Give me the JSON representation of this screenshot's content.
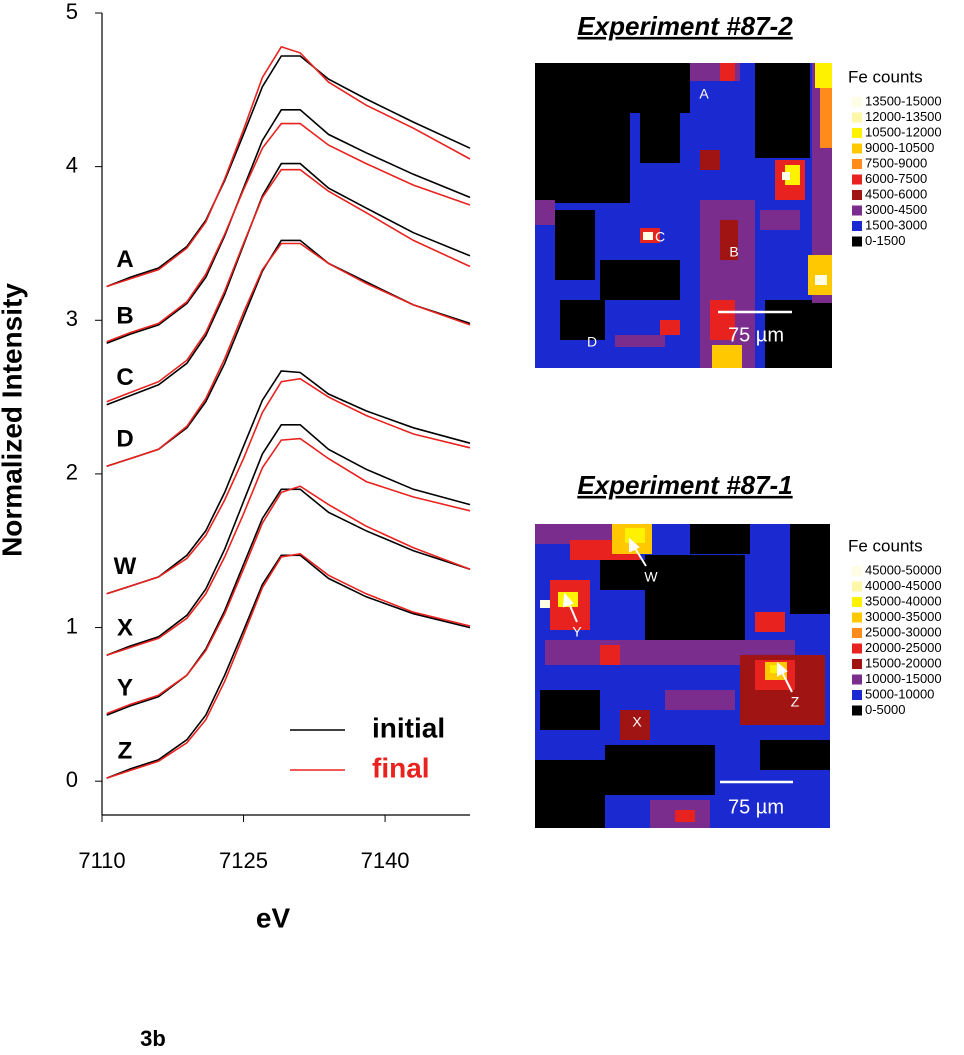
{
  "chart_data": {
    "type": "line",
    "ylabel": "Normalized Intensity",
    "xlabel": "eV",
    "panel_label": "3b",
    "xlim": [
      7110,
      7149
    ],
    "ylim": [
      -0.22,
      5
    ],
    "xticks": [
      7110,
      7125,
      7140
    ],
    "yticks": [
      0,
      1,
      2,
      3,
      4,
      5
    ],
    "x": [
      7110.5,
      7113,
      7116,
      7119,
      7121,
      7123,
      7125,
      7127,
      7129,
      7131,
      7134,
      7138,
      7143,
      7149
    ],
    "legend": [
      {
        "name": "initial",
        "color": "#000000"
      },
      {
        "name": "final",
        "color": "#e8231f"
      }
    ],
    "samples": [
      {
        "label": "A",
        "initial": [
          3.22,
          3.28,
          3.34,
          3.48,
          3.65,
          3.91,
          4.21,
          4.52,
          4.72,
          4.72,
          4.57,
          4.44,
          4.29,
          4.12
        ],
        "final": [
          3.22,
          3.27,
          3.33,
          3.47,
          3.64,
          3.92,
          4.24,
          4.58,
          4.78,
          4.74,
          4.55,
          4.4,
          4.25,
          4.05
        ]
      },
      {
        "label": "B",
        "initial": [
          2.85,
          2.91,
          2.97,
          3.11,
          3.28,
          3.55,
          3.86,
          4.17,
          4.37,
          4.37,
          4.21,
          4.09,
          3.95,
          3.8
        ],
        "final": [
          2.86,
          2.92,
          2.98,
          3.12,
          3.3,
          3.56,
          3.85,
          4.12,
          4.28,
          4.28,
          4.14,
          4.02,
          3.88,
          3.75
        ]
      },
      {
        "label": "C",
        "initial": [
          2.45,
          2.51,
          2.58,
          2.72,
          2.9,
          3.17,
          3.49,
          3.81,
          4.02,
          4.02,
          3.86,
          3.73,
          3.57,
          3.42
        ],
        "final": [
          2.47,
          2.53,
          2.6,
          2.74,
          2.92,
          3.19,
          3.5,
          3.8,
          3.98,
          3.98,
          3.84,
          3.7,
          3.52,
          3.35
        ]
      },
      {
        "label": "D",
        "initial": [
          2.05,
          2.1,
          2.16,
          2.3,
          2.47,
          2.72,
          3.02,
          3.32,
          3.52,
          3.52,
          3.37,
          3.25,
          3.1,
          2.98
        ],
        "final": [
          2.05,
          2.1,
          2.16,
          2.31,
          2.49,
          2.75,
          3.05,
          3.33,
          3.5,
          3.5,
          3.37,
          3.24,
          3.1,
          2.97
        ]
      },
      {
        "label": "W",
        "initial": [
          1.22,
          1.27,
          1.33,
          1.47,
          1.63,
          1.88,
          2.18,
          2.48,
          2.67,
          2.66,
          2.52,
          2.41,
          2.3,
          2.2
        ],
        "final": [
          1.22,
          1.27,
          1.33,
          1.45,
          1.6,
          1.83,
          2.1,
          2.4,
          2.6,
          2.62,
          2.5,
          2.38,
          2.26,
          2.17
        ]
      },
      {
        "label": "X",
        "initial": [
          0.82,
          0.88,
          0.94,
          1.08,
          1.25,
          1.51,
          1.82,
          2.13,
          2.32,
          2.32,
          2.16,
          2.03,
          1.9,
          1.8
        ],
        "final": [
          0.82,
          0.87,
          0.93,
          1.06,
          1.22,
          1.46,
          1.74,
          2.04,
          2.22,
          2.23,
          2.1,
          1.95,
          1.85,
          1.76
        ]
      },
      {
        "label": "Y",
        "initial": [
          0.43,
          0.49,
          0.55,
          0.69,
          0.86,
          1.11,
          1.41,
          1.71,
          1.9,
          1.9,
          1.75,
          1.63,
          1.5,
          1.38
        ],
        "final": [
          0.44,
          0.5,
          0.56,
          0.69,
          0.85,
          1.09,
          1.38,
          1.68,
          1.88,
          1.92,
          1.8,
          1.66,
          1.52,
          1.38
        ]
      },
      {
        "label": "Z",
        "initial": [
          0.02,
          0.08,
          0.14,
          0.27,
          0.43,
          0.69,
          0.98,
          1.28,
          1.47,
          1.47,
          1.32,
          1.2,
          1.09,
          1.0
        ],
        "final": [
          0.02,
          0.07,
          0.13,
          0.25,
          0.4,
          0.65,
          0.95,
          1.26,
          1.46,
          1.48,
          1.34,
          1.22,
          1.1,
          1.01
        ]
      }
    ]
  },
  "maps": [
    {
      "title": "Experiment #87-2",
      "legend_title": "Fe counts",
      "bins": [
        {
          "label": "13500-15000",
          "color": "#fffde6"
        },
        {
          "label": "12000-13500",
          "color": "#fff7a8"
        },
        {
          "label": "10500-12000",
          "color": "#fff200"
        },
        {
          "label": "9000-10500",
          "color": "#ffc800"
        },
        {
          "label": "7500-9000",
          "color": "#ff8c1a"
        },
        {
          "label": "6000-7500",
          "color": "#e8231f"
        },
        {
          "label": "4500-6000",
          "color": "#a01414"
        },
        {
          "label": "3000-4500",
          "color": "#7b2d8e"
        },
        {
          "label": "1500-3000",
          "color": "#1a2ad0"
        },
        {
          "label": "0-1500",
          "color": "#000000"
        }
      ],
      "points": [
        "A",
        "B",
        "C",
        "D"
      ],
      "scale_bar": "75 µm"
    },
    {
      "title": "Experiment #87-1",
      "legend_title": "Fe counts",
      "bins": [
        {
          "label": "45000-50000",
          "color": "#fffde6"
        },
        {
          "label": "40000-45000",
          "color": "#fff7a8"
        },
        {
          "label": "35000-40000",
          "color": "#fff200"
        },
        {
          "label": "30000-35000",
          "color": "#ffc800"
        },
        {
          "label": "25000-30000",
          "color": "#ff8c1a"
        },
        {
          "label": "20000-25000",
          "color": "#e8231f"
        },
        {
          "label": "15000-20000",
          "color": "#a01414"
        },
        {
          "label": "10000-15000",
          "color": "#7b2d8e"
        },
        {
          "label": "5000-10000",
          "color": "#1a2ad0"
        },
        {
          "label": "0-5000",
          "color": "#000000"
        }
      ],
      "points": [
        "W",
        "X",
        "Y",
        "Z"
      ],
      "scale_bar": "75 µm"
    }
  ]
}
